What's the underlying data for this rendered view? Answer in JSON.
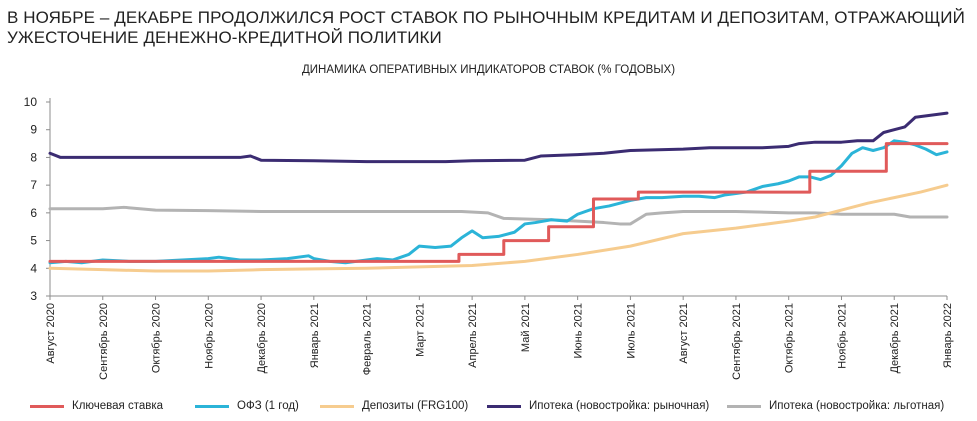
{
  "heading": {
    "line1": "В НОЯБРЕ – ДЕКАБРЕ ПРОДОЛЖИЛСЯ РОСТ СТАВОК ПО РЫНОЧНЫМ КРЕДИТАМ И ДЕПОЗИТАМ, ОТРАЖАЮЩИЙ",
    "line2": "УЖЕСТОЧЕНИЕ ДЕНЕЖНО-КРЕДИТНОЙ ПОЛИТИКИ"
  },
  "chart_data": {
    "type": "line",
    "title": "ДИНАМИКА ОПЕРАТИВНЫХ ИНДИКАТОРОВ СТАВОК (% ГОДОВЫХ)",
    "xlabel": "",
    "ylabel": "",
    "ylim": [
      3,
      10
    ],
    "yticks": [
      3,
      4,
      5,
      6,
      7,
      8,
      9,
      10
    ],
    "grid": false,
    "legend_position": "bottom",
    "x_categories": [
      "Август 2020",
      "Сентябрь 2020",
      "Октябрь 2020",
      "Ноябрь 2020",
      "Декабрь 2020",
      "Январь 2021",
      "Февраль 2021",
      "Март 2021",
      "Апрель 2021",
      "Май 2021",
      "Июнь 2021",
      "Июль 2021",
      "Август 2021",
      "Сентябрь 2021",
      "Октябрь 2021",
      "Ноябрь 2021",
      "Декабрь 2021",
      "Январь 2022"
    ],
    "series": [
      {
        "name": "Ключевая ставка",
        "color": "#e05a5a",
        "step": true,
        "x": [
          0,
          7.75,
          7.75,
          8.6,
          8.6,
          9.45,
          9.45,
          10.3,
          10.3,
          11.15,
          11.15,
          14.4,
          14.4,
          15.85,
          15.85,
          16.8,
          16.8,
          17
        ],
        "values": [
          4.25,
          4.25,
          4.5,
          4.5,
          5.0,
          5.0,
          5.5,
          5.5,
          6.5,
          6.5,
          6.75,
          6.75,
          7.5,
          7.5,
          8.5,
          8.5,
          8.5,
          8.5
        ]
      },
      {
        "name": "ОФЗ (1 год)",
        "color": "#2bb4d8",
        "x": [
          0,
          0.3,
          0.6,
          1.0,
          1.5,
          2.0,
          2.5,
          3.0,
          3.2,
          3.6,
          4.0,
          4.5,
          4.9,
          5.0,
          5.3,
          5.6,
          6.0,
          6.2,
          6.5,
          6.8,
          7.0,
          7.3,
          7.6,
          7.8,
          8.0,
          8.2,
          8.5,
          8.8,
          9.0,
          9.2,
          9.5,
          9.8,
          10.0,
          10.3,
          10.6,
          11.0,
          11.3,
          11.6,
          12.0,
          12.3,
          12.6,
          12.8,
          13.0,
          13.2,
          13.5,
          13.8,
          14.0,
          14.2,
          14.4,
          14.6,
          14.8,
          15.0,
          15.2,
          15.4,
          15.6,
          15.8,
          16.0,
          16.2,
          16.4,
          16.6,
          16.8,
          17.0
        ],
        "values": [
          4.2,
          4.25,
          4.2,
          4.3,
          4.25,
          4.25,
          4.3,
          4.35,
          4.4,
          4.3,
          4.3,
          4.35,
          4.45,
          4.35,
          4.25,
          4.2,
          4.3,
          4.35,
          4.3,
          4.5,
          4.8,
          4.75,
          4.8,
          5.1,
          5.35,
          5.1,
          5.15,
          5.3,
          5.6,
          5.65,
          5.75,
          5.7,
          5.95,
          6.15,
          6.25,
          6.45,
          6.55,
          6.55,
          6.6,
          6.6,
          6.55,
          6.65,
          6.7,
          6.75,
          6.95,
          7.05,
          7.15,
          7.3,
          7.3,
          7.2,
          7.35,
          7.7,
          8.15,
          8.35,
          8.25,
          8.35,
          8.6,
          8.55,
          8.45,
          8.3,
          8.1,
          8.2
        ]
      },
      {
        "name": "Депозиты (FRG100)",
        "color": "#f6cc8f",
        "x": [
          0,
          1.0,
          2.0,
          3.0,
          4.0,
          5.0,
          6.0,
          7.0,
          8.0,
          9.0,
          10.0,
          11.0,
          12.0,
          13.0,
          14.0,
          14.5,
          15.0,
          15.5,
          16.0,
          16.5,
          17.0
        ],
        "values": [
          4.0,
          3.95,
          3.9,
          3.9,
          3.95,
          3.98,
          4.0,
          4.05,
          4.1,
          4.25,
          4.5,
          4.8,
          5.25,
          5.45,
          5.7,
          5.85,
          6.1,
          6.35,
          6.55,
          6.75,
          7.0
        ]
      },
      {
        "name": "Ипотека (новостройка: рыночная)",
        "color": "#3b2c72",
        "x": [
          0,
          0.2,
          1.0,
          2.0,
          3.0,
          3.6,
          3.8,
          4.0,
          5.0,
          6.0,
          7.0,
          7.5,
          8.0,
          9.0,
          9.3,
          10.0,
          10.5,
          11.0,
          12.0,
          12.5,
          13.0,
          13.5,
          14.0,
          14.2,
          14.5,
          15.0,
          15.3,
          15.6,
          15.8,
          16.0,
          16.2,
          16.4,
          16.6,
          16.8,
          17.0
        ],
        "values": [
          8.15,
          8.0,
          8.0,
          8.0,
          8.0,
          8.0,
          8.05,
          7.9,
          7.88,
          7.85,
          7.85,
          7.85,
          7.88,
          7.9,
          8.05,
          8.1,
          8.15,
          8.25,
          8.3,
          8.35,
          8.35,
          8.35,
          8.4,
          8.5,
          8.55,
          8.55,
          8.6,
          8.6,
          8.9,
          9.0,
          9.1,
          9.45,
          9.5,
          9.55,
          9.6
        ]
      },
      {
        "name": "Ипотека (новостройка: льготная)",
        "color": "#b3b3b3",
        "x": [
          0,
          1.0,
          1.4,
          2.0,
          3.0,
          4.0,
          5.0,
          6.0,
          7.0,
          7.8,
          8.3,
          8.6,
          9.0,
          9.5,
          10.0,
          10.5,
          10.8,
          11.0,
          11.3,
          11.6,
          12.0,
          13.0,
          14.0,
          14.5,
          15.0,
          15.5,
          16.0,
          16.3,
          16.6,
          17.0
        ],
        "values": [
          6.15,
          6.15,
          6.2,
          6.1,
          6.08,
          6.05,
          6.05,
          6.05,
          6.05,
          6.05,
          6.0,
          5.8,
          5.78,
          5.75,
          5.7,
          5.65,
          5.6,
          5.6,
          5.95,
          6.0,
          6.05,
          6.05,
          6.0,
          6.0,
          5.95,
          5.95,
          5.95,
          5.85,
          5.85,
          5.85
        ]
      }
    ]
  }
}
